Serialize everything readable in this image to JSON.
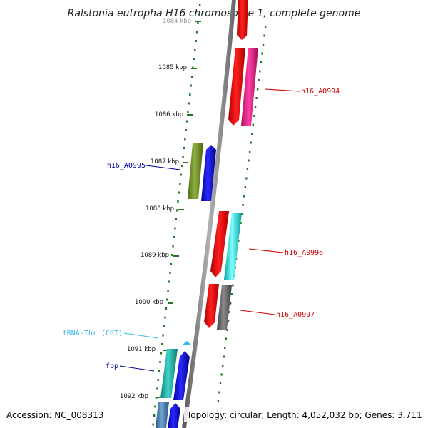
{
  "title": "Ralstonia eutropha H16 chromosome 1, complete genome",
  "accession_text": "Accession: NC_008313",
  "summary_text": "Topology: circular; Length: 4,052,032 bp; Genes: 3,711",
  "ruler": {
    "labels": [
      "1084 kbp",
      "1085 kbp",
      "1086 kbp",
      "1087 kbp",
      "1088 kbp",
      "1089 kbp",
      "1090 kbp",
      "1091 kbp",
      "1092 kbp"
    ]
  },
  "gene_labels": [
    {
      "text": "h16_A0994",
      "color": "#cc0000"
    },
    {
      "text": "h16_A0995",
      "color": "#000099"
    },
    {
      "text": "h16_A0996",
      "color": "#cc0000"
    },
    {
      "text": "h16_A0997",
      "color": "#cc0000"
    },
    {
      "text": "tRNA-Thr (CGT)",
      "color": "#33bbee"
    },
    {
      "text": "fbp",
      "color": "#000099"
    }
  ],
  "colors": {
    "backbone": "#888888",
    "ticks": "#227722",
    "red": "#ff0000",
    "magenta": "#ff2299",
    "olive": "#6b8e23",
    "blue": "#0000ee",
    "cyan": "#00e5e5",
    "gray": "#666666",
    "teal": "#20b2aa",
    "steel": "#4682b4",
    "trna": "#33bbee"
  }
}
